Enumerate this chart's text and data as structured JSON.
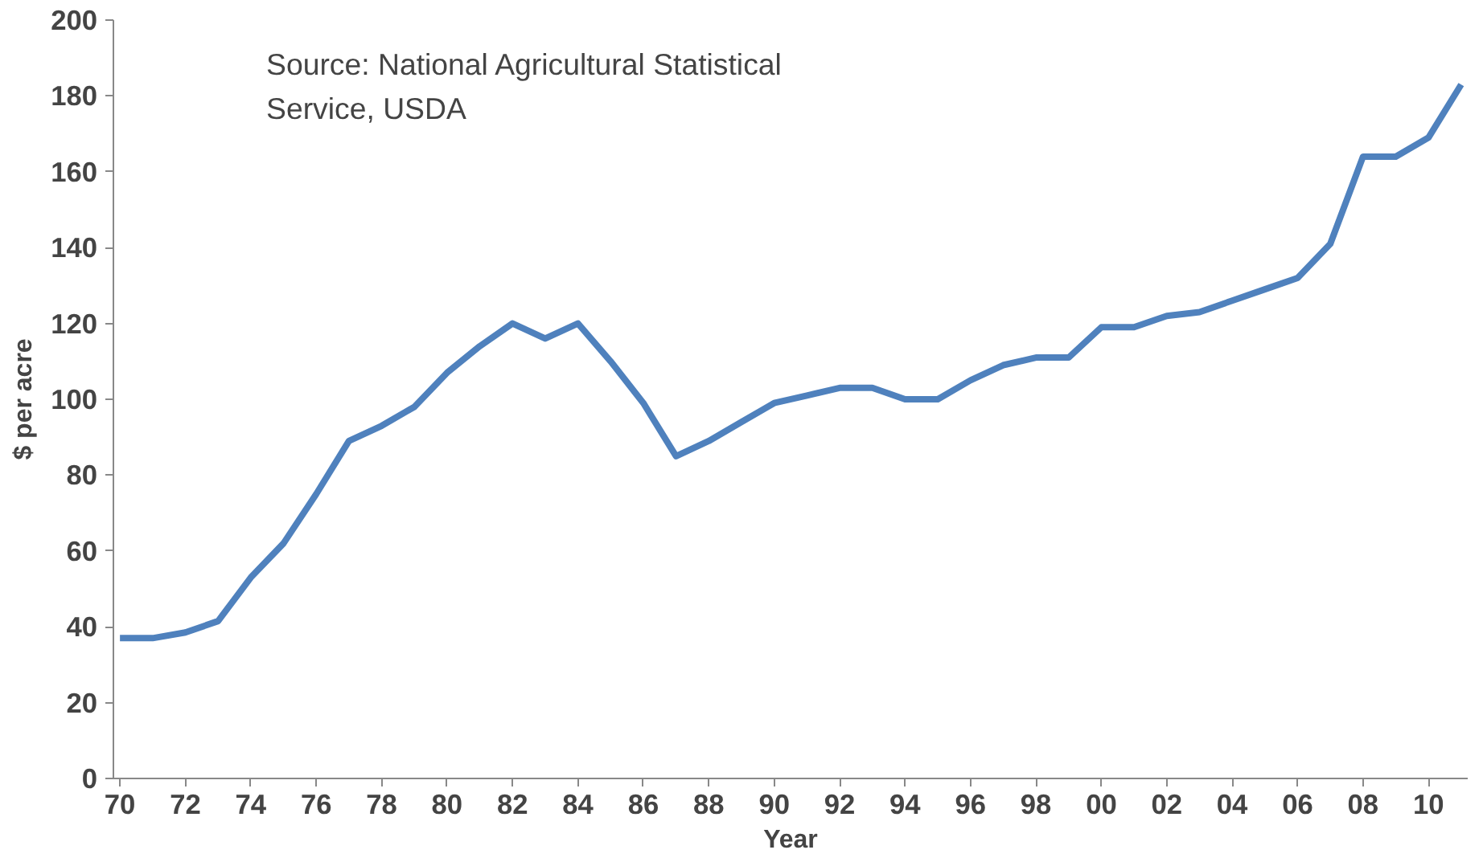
{
  "chart_data": {
    "type": "line",
    "xlabel": "Year",
    "ylabel": "$ per acre",
    "annotations": [
      "Source: National Agricultural Statistical\nService, USDA"
    ],
    "x": [
      1970,
      1971,
      1972,
      1973,
      1974,
      1975,
      1976,
      1977,
      1978,
      1979,
      1980,
      1981,
      1982,
      1983,
      1984,
      1985,
      1986,
      1987,
      1988,
      1989,
      1990,
      1991,
      1992,
      1993,
      1994,
      1995,
      1996,
      1997,
      1998,
      1999,
      2000,
      2001,
      2002,
      2003,
      2004,
      2005,
      2006,
      2007,
      2008,
      2009,
      2010,
      2011
    ],
    "series": [
      {
        "color": "#4f81bd",
        "values": [
          37,
          37,
          38.5,
          41.5,
          53,
          62,
          75,
          89,
          93,
          98,
          107,
          114,
          120,
          116,
          120,
          110,
          99,
          85,
          89,
          94,
          99,
          101,
          103,
          103,
          100,
          100,
          105,
          109,
          111,
          111,
          119,
          119,
          122,
          123,
          126,
          129,
          132,
          141,
          164,
          164,
          169,
          183
        ]
      }
    ],
    "xlim": [
      1969.8,
      2011.2
    ],
    "xticks": [
      {
        "value": 1970,
        "label": "70"
      },
      {
        "value": 1972,
        "label": "72"
      },
      {
        "value": 1974,
        "label": "74"
      },
      {
        "value": 1976,
        "label": "76"
      },
      {
        "value": 1978,
        "label": "78"
      },
      {
        "value": 1980,
        "label": "80"
      },
      {
        "value": 1982,
        "label": "82"
      },
      {
        "value": 1984,
        "label": "84"
      },
      {
        "value": 1986,
        "label": "86"
      },
      {
        "value": 1988,
        "label": "88"
      },
      {
        "value": 1990,
        "label": "90"
      },
      {
        "value": 1992,
        "label": "92"
      },
      {
        "value": 1994,
        "label": "94"
      },
      {
        "value": 1996,
        "label": "96"
      },
      {
        "value": 1998,
        "label": "98"
      },
      {
        "value": 2000,
        "label": "00"
      },
      {
        "value": 2002,
        "label": "02"
      },
      {
        "value": 2004,
        "label": "04"
      },
      {
        "value": 2006,
        "label": "06"
      },
      {
        "value": 2008,
        "label": "08"
      },
      {
        "value": 2010,
        "label": "10"
      }
    ],
    "ylim": [
      0,
      200
    ],
    "yticks": [
      0,
      20,
      40,
      60,
      80,
      100,
      120,
      140,
      160,
      180,
      200
    ],
    "grid": false,
    "marker": "none",
    "line_style": "solid"
  }
}
